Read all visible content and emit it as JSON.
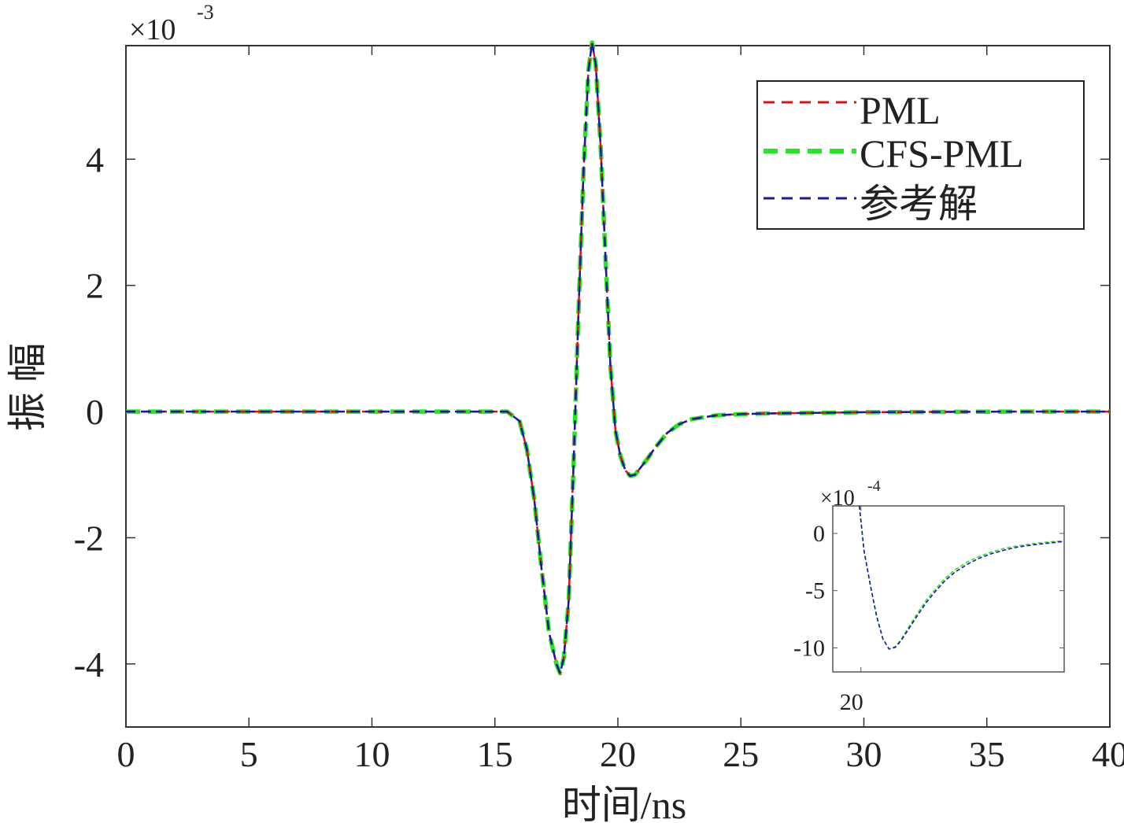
{
  "chart_data": [
    {
      "type": "line",
      "xlabel": "时间/ns",
      "ylabel": "振 幅",
      "y_scale_label": {
        "base": "×10",
        "exponent": "-3"
      },
      "xlim": [
        0,
        40
      ],
      "ylim": [
        -5,
        5.8
      ],
      "xticks": [
        0,
        5,
        10,
        15,
        20,
        25,
        30,
        35,
        40
      ],
      "yticks": [
        -4,
        -2,
        0,
        2,
        4
      ],
      "xtick_labels": [
        "0",
        "5",
        "10",
        "15",
        "20",
        "25",
        "30",
        "35",
        "40"
      ],
      "ytick_labels": [
        "-4",
        "-2",
        "0",
        "2",
        "4"
      ],
      "grid": false,
      "legend_position": "top-right",
      "series": [
        {
          "name": "PML",
          "color": "#e01010",
          "style": "dashed",
          "x": [
            0,
            15.5,
            16.0,
            16.3,
            16.6,
            16.9,
            17.2,
            17.5,
            17.65,
            17.8,
            18.0,
            18.2,
            18.4,
            18.6,
            18.8,
            18.95,
            19.1,
            19.3,
            19.5,
            19.7,
            19.9,
            20.1,
            20.3,
            20.5,
            20.7,
            20.9,
            21.2,
            21.5,
            22.0,
            22.5,
            23.0,
            24.0,
            25.0,
            26.0,
            28.0,
            30.0,
            33.0,
            36.0,
            40.0
          ],
          "y": [
            0,
            0,
            -0.15,
            -0.6,
            -1.4,
            -2.5,
            -3.5,
            -4.0,
            -4.15,
            -3.9,
            -3.0,
            -0.8,
            1.6,
            3.8,
            5.4,
            5.85,
            5.5,
            4.2,
            2.4,
            0.7,
            -0.3,
            -0.7,
            -0.93,
            -1.02,
            -1.0,
            -0.9,
            -0.75,
            -0.58,
            -0.34,
            -0.2,
            -0.12,
            -0.06,
            -0.04,
            -0.03,
            -0.02,
            -0.01,
            -0.005,
            0,
            0
          ]
        },
        {
          "name": "CFS-PML",
          "color": "#22e622",
          "style": "dashed",
          "x": [
            0,
            15.5,
            16.0,
            16.3,
            16.6,
            16.9,
            17.2,
            17.5,
            17.65,
            17.8,
            18.0,
            18.2,
            18.4,
            18.6,
            18.8,
            18.95,
            19.1,
            19.3,
            19.5,
            19.7,
            19.9,
            20.1,
            20.3,
            20.5,
            20.7,
            20.9,
            21.2,
            21.5,
            22.0,
            22.5,
            23.0,
            24.0,
            25.0,
            26.0,
            28.0,
            30.0,
            33.0,
            36.0,
            40.0
          ],
          "y": [
            0,
            0,
            -0.15,
            -0.6,
            -1.4,
            -2.5,
            -3.5,
            -4.0,
            -4.15,
            -3.9,
            -3.0,
            -0.8,
            1.6,
            3.8,
            5.4,
            5.85,
            5.5,
            4.2,
            2.4,
            0.7,
            -0.3,
            -0.7,
            -0.93,
            -1.02,
            -1.0,
            -0.9,
            -0.75,
            -0.58,
            -0.34,
            -0.2,
            -0.12,
            -0.06,
            -0.04,
            -0.03,
            -0.02,
            -0.01,
            -0.005,
            0,
            0
          ]
        },
        {
          "name": "参考解",
          "color": "#1a1aa0",
          "style": "dashed",
          "x": [
            0,
            15.5,
            16.0,
            16.3,
            16.6,
            16.9,
            17.2,
            17.5,
            17.65,
            17.8,
            18.0,
            18.2,
            18.4,
            18.6,
            18.8,
            18.95,
            19.1,
            19.3,
            19.5,
            19.7,
            19.9,
            20.1,
            20.3,
            20.5,
            20.7,
            20.9,
            21.2,
            21.5,
            22.0,
            22.5,
            23.0,
            24.0,
            25.0,
            26.0,
            28.0,
            30.0,
            33.0,
            36.0,
            40.0
          ],
          "y": [
            0,
            0,
            -0.15,
            -0.6,
            -1.4,
            -2.5,
            -3.5,
            -4.0,
            -4.15,
            -3.9,
            -3.0,
            -0.8,
            1.6,
            3.8,
            5.4,
            5.85,
            5.5,
            4.2,
            2.4,
            0.7,
            -0.3,
            -0.7,
            -0.93,
            -1.02,
            -1.0,
            -0.9,
            -0.75,
            -0.58,
            -0.34,
            -0.2,
            -0.12,
            -0.06,
            -0.04,
            -0.03,
            -0.02,
            -0.01,
            -0.005,
            0,
            0
          ]
        }
      ]
    },
    {
      "type": "line",
      "inset": true,
      "y_scale_label": {
        "base": "×10",
        "exponent": "-4"
      },
      "xlim": [
        19.1,
        26.5
      ],
      "ylim": [
        -12.1,
        2.4
      ],
      "xticks": [
        20
      ],
      "yticks": [
        -10,
        -5,
        0
      ],
      "xtick_labels": [
        "20"
      ],
      "ytick_labels": [
        "-10",
        "-5",
        "0"
      ],
      "grid": false,
      "series": [
        {
          "color": "#22e622",
          "style": "dashed",
          "x": [
            19.95,
            20.1,
            20.3,
            20.5,
            20.7,
            20.9,
            21.1,
            21.3,
            21.5,
            21.8,
            22.1,
            22.4,
            22.7,
            23.0,
            23.4,
            23.8,
            24.2,
            24.6,
            25.0,
            25.5,
            26.0,
            26.5
          ],
          "y": [
            2.4,
            -1.5,
            -4.5,
            -7.2,
            -9.2,
            -10.1,
            -9.9,
            -9.2,
            -8.3,
            -7.0,
            -5.8,
            -4.8,
            -3.9,
            -3.2,
            -2.5,
            -2.0,
            -1.6,
            -1.3,
            -1.1,
            -0.9,
            -0.75,
            -0.65
          ]
        },
        {
          "color": "#1a1aa0",
          "style": "dashed",
          "x": [
            19.95,
            20.1,
            20.3,
            20.5,
            20.7,
            20.9,
            21.1,
            21.3,
            21.5,
            21.8,
            22.1,
            22.4,
            22.7,
            23.0,
            23.4,
            23.8,
            24.2,
            24.6,
            25.0,
            25.5,
            26.0,
            26.5
          ],
          "y": [
            2.4,
            -1.5,
            -4.5,
            -7.2,
            -9.2,
            -10.1,
            -9.95,
            -9.3,
            -8.45,
            -7.2,
            -6.0,
            -5.0,
            -4.1,
            -3.4,
            -2.7,
            -2.15,
            -1.75,
            -1.45,
            -1.2,
            -1.0,
            -0.85,
            -0.7
          ]
        }
      ]
    }
  ]
}
